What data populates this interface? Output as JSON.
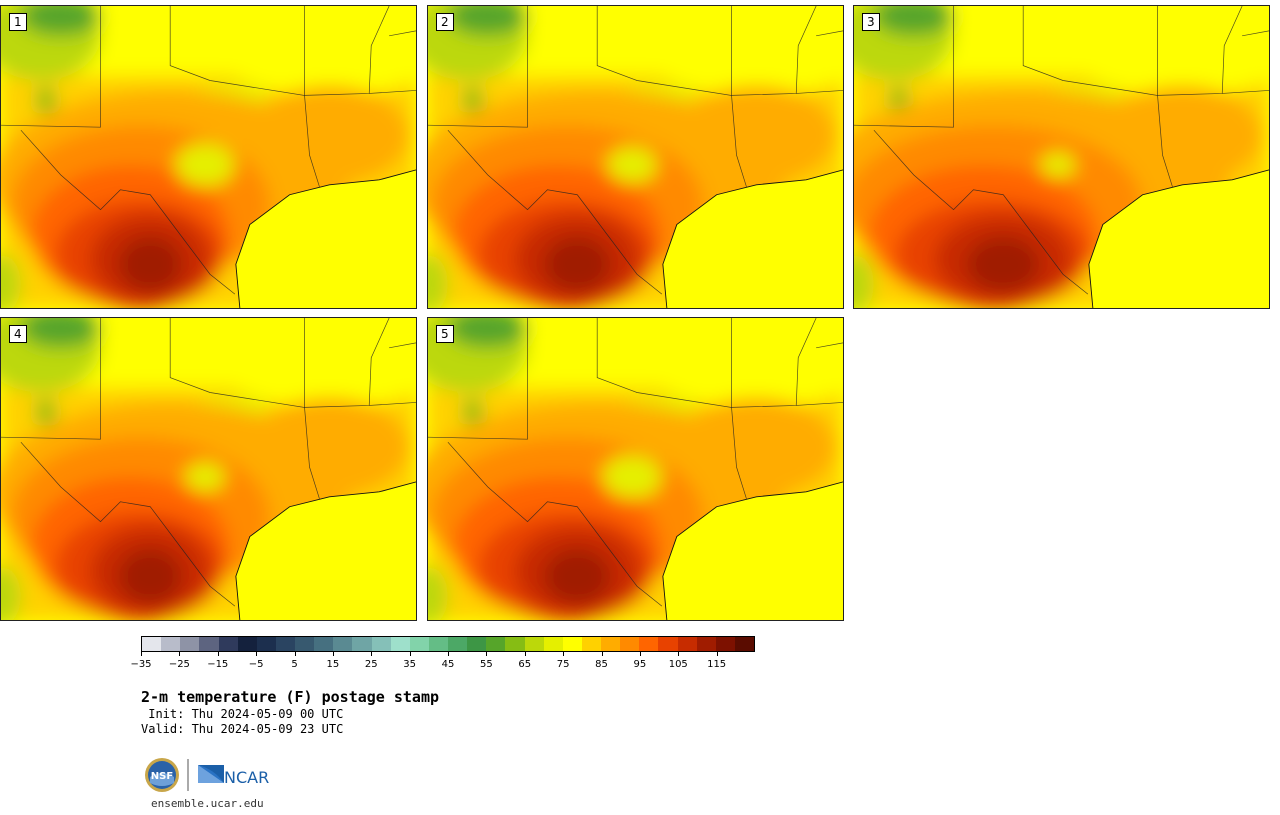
{
  "panels": [
    {
      "label": "1",
      "hot": 1.0,
      "cool_spot": 1.0
    },
    {
      "label": "2",
      "hot": 1.05,
      "cool_spot": 0.8
    },
    {
      "label": "3",
      "hot": 1.15,
      "cool_spot": 0.5
    },
    {
      "label": "4",
      "hot": 1.0,
      "cool_spot": 0.6
    },
    {
      "label": "5",
      "hot": 1.05,
      "cool_spot": 1.0
    }
  ],
  "colorbar": {
    "colors": [
      "#e4e6ec",
      "#b8bcca",
      "#8e93a6",
      "#5d6480",
      "#2f3a5c",
      "#14213d",
      "#1c2f4e",
      "#2a4461",
      "#37596f",
      "#467080",
      "#5a8a92",
      "#6fa5a5",
      "#85c0b8",
      "#9ee0cb",
      "#82d3aa",
      "#64bd86",
      "#4ca866",
      "#3d9645",
      "#56a52a",
      "#86bd14",
      "#bcd80a",
      "#e5ef00",
      "#ffff00",
      "#ffd100",
      "#ffac00",
      "#ff8a00",
      "#ff6500",
      "#e84200",
      "#c72c00",
      "#a01c00",
      "#7d1100",
      "#5a0c00"
    ],
    "tick_labels": [
      "−35",
      "−25",
      "−15",
      "−5",
      "5",
      "15",
      "25",
      "35",
      "45",
      "55",
      "65",
      "75",
      "85",
      "95",
      "105",
      "115"
    ]
  },
  "title": "2-m temperature (F) postage stamp",
  "init": " Init: Thu 2024-05-09 00 UTC",
  "valid": "Valid: Thu 2024-05-09 23 UTC",
  "logos": {
    "nsf": "NSF",
    "ncar": "NCAR"
  },
  "site": "ensemble.ucar.edu"
}
